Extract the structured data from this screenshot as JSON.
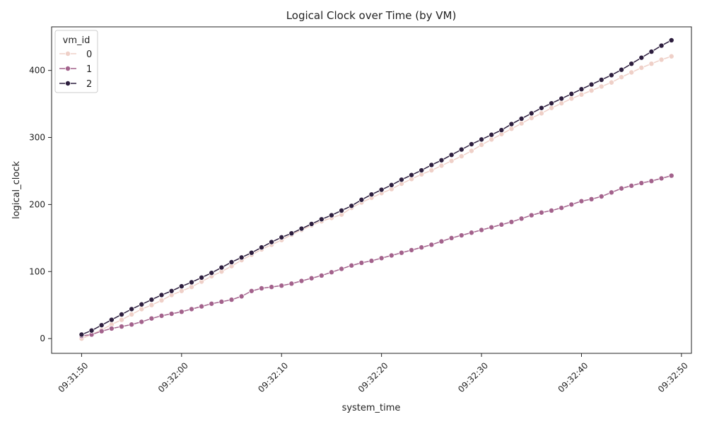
{
  "chart_data": {
    "type": "line",
    "title": "Logical Clock over Time (by VM)",
    "xlabel": "system_time",
    "ylabel": "logical_clock",
    "x_range": [
      "09:31:47",
      "09:32:51"
    ],
    "ylim": [
      -22,
      465
    ],
    "x_ticks": [
      "09:31:50",
      "09:32:00",
      "09:32:10",
      "09:32:20",
      "09:32:30",
      "09:32:40",
      "09:32:50"
    ],
    "y_ticks": [
      0,
      100,
      200,
      300,
      400
    ],
    "grid": false,
    "legend": {
      "title": "vm_id",
      "position": "top-left"
    },
    "series": [
      {
        "name": "0",
        "color": "#efd0c8",
        "points": [
          [
            "09:31:50",
            0
          ],
          [
            "09:31:51",
            6
          ],
          [
            "09:31:52",
            13
          ],
          [
            "09:31:53",
            21
          ],
          [
            "09:31:54",
            28
          ],
          [
            "09:31:55",
            36
          ],
          [
            "09:31:56",
            44
          ],
          [
            "09:31:57",
            50
          ],
          [
            "09:31:58",
            57
          ],
          [
            "09:31:59",
            65
          ],
          [
            "09:32:00",
            71
          ],
          [
            "09:32:01",
            77
          ],
          [
            "09:32:02",
            85
          ],
          [
            "09:32:03",
            93
          ],
          [
            "09:32:04",
            100
          ],
          [
            "09:32:05",
            108
          ],
          [
            "09:32:06",
            117
          ],
          [
            "09:32:07",
            125
          ],
          [
            "09:32:08",
            133
          ],
          [
            "09:32:09",
            140
          ],
          [
            "09:32:10",
            147
          ],
          [
            "09:32:11",
            155
          ],
          [
            "09:32:12",
            162
          ],
          [
            "09:32:13",
            169
          ],
          [
            "09:32:14",
            175
          ],
          [
            "09:32:15",
            180
          ],
          [
            "09:32:16",
            185
          ],
          [
            "09:32:17",
            195
          ],
          [
            "09:32:18",
            203
          ],
          [
            "09:32:19",
            210
          ],
          [
            "09:32:20",
            217
          ],
          [
            "09:32:21",
            223
          ],
          [
            "09:32:22",
            231
          ],
          [
            "09:32:23",
            238
          ],
          [
            "09:32:24",
            245
          ],
          [
            "09:32:25",
            251
          ],
          [
            "09:32:26",
            258
          ],
          [
            "09:32:27",
            265
          ],
          [
            "09:32:28",
            272
          ],
          [
            "09:32:29",
            280
          ],
          [
            "09:32:30",
            289
          ],
          [
            "09:32:31",
            297
          ],
          [
            "09:32:32",
            305
          ],
          [
            "09:32:33",
            313
          ],
          [
            "09:32:34",
            321
          ],
          [
            "09:32:35",
            329
          ],
          [
            "09:32:36",
            336
          ],
          [
            "09:32:37",
            344
          ],
          [
            "09:32:38",
            351
          ],
          [
            "09:32:39",
            358
          ],
          [
            "09:32:40",
            364
          ],
          [
            "09:32:41",
            370
          ],
          [
            "09:32:42",
            376
          ],
          [
            "09:32:43",
            382
          ],
          [
            "09:32:44",
            390
          ],
          [
            "09:32:45",
            397
          ],
          [
            "09:32:46",
            404
          ],
          [
            "09:32:47",
            410
          ],
          [
            "09:32:48",
            416
          ],
          [
            "09:32:49",
            421
          ]
        ]
      },
      {
        "name": "1",
        "color": "#a3628c",
        "points": [
          [
            "09:31:50",
            4
          ],
          [
            "09:31:51",
            6
          ],
          [
            "09:31:52",
            11
          ],
          [
            "09:31:53",
            15
          ],
          [
            "09:31:54",
            18
          ],
          [
            "09:31:55",
            21
          ],
          [
            "09:31:56",
            25
          ],
          [
            "09:31:57",
            30
          ],
          [
            "09:31:58",
            34
          ],
          [
            "09:31:59",
            37
          ],
          [
            "09:32:00",
            40
          ],
          [
            "09:32:01",
            44
          ],
          [
            "09:32:02",
            48
          ],
          [
            "09:32:03",
            52
          ],
          [
            "09:32:04",
            55
          ],
          [
            "09:32:05",
            58
          ],
          [
            "09:32:06",
            63
          ],
          [
            "09:32:07",
            71
          ],
          [
            "09:32:08",
            75
          ],
          [
            "09:32:09",
            77
          ],
          [
            "09:32:10",
            79
          ],
          [
            "09:32:11",
            82
          ],
          [
            "09:32:12",
            86
          ],
          [
            "09:32:13",
            90
          ],
          [
            "09:32:14",
            94
          ],
          [
            "09:32:15",
            99
          ],
          [
            "09:32:16",
            104
          ],
          [
            "09:32:17",
            109
          ],
          [
            "09:32:18",
            113
          ],
          [
            "09:32:19",
            116
          ],
          [
            "09:32:20",
            120
          ],
          [
            "09:32:21",
            124
          ],
          [
            "09:32:22",
            128
          ],
          [
            "09:32:23",
            132
          ],
          [
            "09:32:24",
            136
          ],
          [
            "09:32:25",
            140
          ],
          [
            "09:32:26",
            145
          ],
          [
            "09:32:27",
            150
          ],
          [
            "09:32:28",
            154
          ],
          [
            "09:32:29",
            158
          ],
          [
            "09:32:30",
            162
          ],
          [
            "09:32:31",
            166
          ],
          [
            "09:32:32",
            170
          ],
          [
            "09:32:33",
            174
          ],
          [
            "09:32:34",
            179
          ],
          [
            "09:32:35",
            184
          ],
          [
            "09:32:36",
            188
          ],
          [
            "09:32:37",
            191
          ],
          [
            "09:32:38",
            195
          ],
          [
            "09:32:39",
            200
          ],
          [
            "09:32:40",
            205
          ],
          [
            "09:32:41",
            208
          ],
          [
            "09:32:42",
            212
          ],
          [
            "09:32:43",
            218
          ],
          [
            "09:32:44",
            224
          ],
          [
            "09:32:45",
            228
          ],
          [
            "09:32:46",
            232
          ],
          [
            "09:32:47",
            235
          ],
          [
            "09:32:48",
            239
          ],
          [
            "09:32:49",
            243
          ]
        ]
      },
      {
        "name": "2",
        "color": "#2d1e3e",
        "points": [
          [
            "09:31:50",
            6
          ],
          [
            "09:31:51",
            12
          ],
          [
            "09:31:52",
            20
          ],
          [
            "09:31:53",
            28
          ],
          [
            "09:31:54",
            36
          ],
          [
            "09:31:55",
            44
          ],
          [
            "09:31:56",
            51
          ],
          [
            "09:31:57",
            58
          ],
          [
            "09:31:58",
            65
          ],
          [
            "09:31:59",
            71
          ],
          [
            "09:32:00",
            78
          ],
          [
            "09:32:01",
            84
          ],
          [
            "09:32:02",
            91
          ],
          [
            "09:32:03",
            98
          ],
          [
            "09:32:04",
            106
          ],
          [
            "09:32:05",
            114
          ],
          [
            "09:32:06",
            121
          ],
          [
            "09:32:07",
            128
          ],
          [
            "09:32:08",
            136
          ],
          [
            "09:32:09",
            144
          ],
          [
            "09:32:10",
            151
          ],
          [
            "09:32:11",
            157
          ],
          [
            "09:32:12",
            164
          ],
          [
            "09:32:13",
            171
          ],
          [
            "09:32:14",
            178
          ],
          [
            "09:32:15",
            184
          ],
          [
            "09:32:16",
            191
          ],
          [
            "09:32:17",
            198
          ],
          [
            "09:32:18",
            207
          ],
          [
            "09:32:19",
            215
          ],
          [
            "09:32:20",
            222
          ],
          [
            "09:32:21",
            229
          ],
          [
            "09:32:22",
            237
          ],
          [
            "09:32:23",
            244
          ],
          [
            "09:32:24",
            251
          ],
          [
            "09:32:25",
            259
          ],
          [
            "09:32:26",
            266
          ],
          [
            "09:32:27",
            274
          ],
          [
            "09:32:28",
            282
          ],
          [
            "09:32:29",
            290
          ],
          [
            "09:32:30",
            297
          ],
          [
            "09:32:31",
            304
          ],
          [
            "09:32:32",
            311
          ],
          [
            "09:32:33",
            320
          ],
          [
            "09:32:34",
            328
          ],
          [
            "09:32:35",
            336
          ],
          [
            "09:32:36",
            344
          ],
          [
            "09:32:37",
            351
          ],
          [
            "09:32:38",
            358
          ],
          [
            "09:32:39",
            365
          ],
          [
            "09:32:40",
            372
          ],
          [
            "09:32:41",
            379
          ],
          [
            "09:32:42",
            386
          ],
          [
            "09:32:43",
            393
          ],
          [
            "09:32:44",
            401
          ],
          [
            "09:32:45",
            410
          ],
          [
            "09:32:46",
            419
          ],
          [
            "09:32:47",
            428
          ],
          [
            "09:32:48",
            437
          ],
          [
            "09:32:49",
            445
          ]
        ]
      }
    ]
  }
}
